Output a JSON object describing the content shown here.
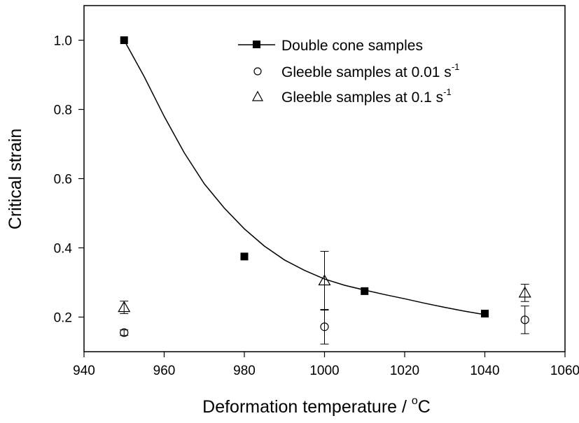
{
  "chart_data": {
    "type": "scatter",
    "xlabel": "Deformation temperature / °C",
    "xlabel_main": "Deformation temperature / ",
    "xlabel_sup": "o",
    "xlabel_unit": "C",
    "ylabel": "Critical strain",
    "xlim": [
      940,
      1060
    ],
    "ylim": [
      0.1,
      1.1
    ],
    "x_ticks": [
      940,
      960,
      980,
      1000,
      1020,
      1040,
      1060
    ],
    "x_tick_labels": [
      "940",
      "960",
      "980",
      "1000",
      "1020",
      "1040",
      "1060"
    ],
    "y_ticks": [
      0.2,
      0.4,
      0.6,
      0.8,
      1.0
    ],
    "y_tick_labels": [
      "0.2",
      "0.4",
      "0.6",
      "0.8",
      "1.0"
    ],
    "grid": false,
    "legend_position": "top-right",
    "series": [
      {
        "name": "Double cone samples",
        "marker": "filled-square",
        "line": "smooth",
        "points": [
          {
            "x": 950,
            "y": 1.0
          },
          {
            "x": 980,
            "y": 0.375
          },
          {
            "x": 1010,
            "y": 0.275
          },
          {
            "x": 1040,
            "y": 0.21
          }
        ],
        "fit_curve": [
          {
            "x": 950,
            "y": 1.0
          },
          {
            "x": 955,
            "y": 0.895
          },
          {
            "x": 960,
            "y": 0.78
          },
          {
            "x": 965,
            "y": 0.675
          },
          {
            "x": 970,
            "y": 0.585
          },
          {
            "x": 975,
            "y": 0.515
          },
          {
            "x": 980,
            "y": 0.455
          },
          {
            "x": 985,
            "y": 0.405
          },
          {
            "x": 990,
            "y": 0.365
          },
          {
            "x": 995,
            "y": 0.335
          },
          {
            "x": 1000,
            "y": 0.31
          },
          {
            "x": 1005,
            "y": 0.292
          },
          {
            "x": 1010,
            "y": 0.278
          },
          {
            "x": 1015,
            "y": 0.265
          },
          {
            "x": 1020,
            "y": 0.253
          },
          {
            "x": 1025,
            "y": 0.24
          },
          {
            "x": 1030,
            "y": 0.228
          },
          {
            "x": 1035,
            "y": 0.217
          },
          {
            "x": 1040,
            "y": 0.207
          }
        ]
      },
      {
        "name": "Gleeble samples at 0.01 s",
        "name_main": "Gleeble samples at 0.01 s",
        "name_sup": "-1",
        "marker": "open-circle",
        "points": [
          {
            "x": 950,
            "y": 0.155,
            "y_err": 0.008
          },
          {
            "x": 1000,
            "y": 0.172,
            "y_err": 0.05
          },
          {
            "x": 1050,
            "y": 0.192,
            "y_err": 0.04
          }
        ]
      },
      {
        "name": "Gleeble samples at 0.1 s",
        "name_main": "Gleeble samples at 0.1 s",
        "name_sup": "-1",
        "marker": "open-triangle",
        "points": [
          {
            "x": 950,
            "y": 0.228,
            "y_err": 0.018
          },
          {
            "x": 1000,
            "y": 0.305,
            "y_err": 0.085
          },
          {
            "x": 1050,
            "y": 0.27,
            "y_err": 0.025
          }
        ]
      }
    ]
  }
}
